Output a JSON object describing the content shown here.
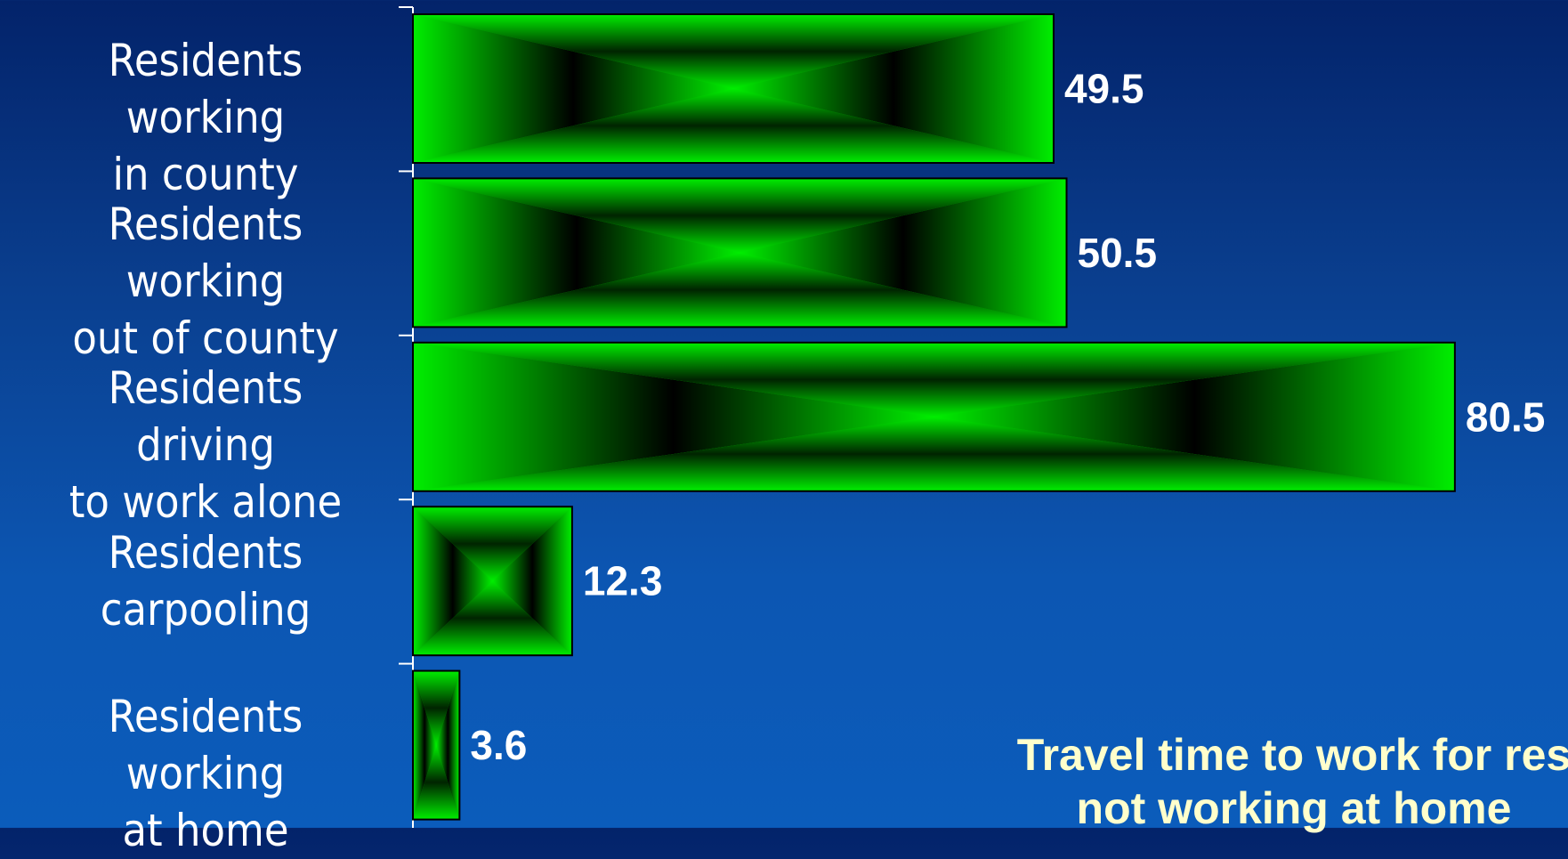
{
  "chart_data": {
    "type": "bar",
    "orientation": "horizontal",
    "categories": [
      "Residents working\nin county",
      "Residents working\nout of county",
      "Residents driving\nto work alone",
      "Residents\ncarpooling",
      "Residents working\nat home"
    ],
    "values": [
      49.5,
      50.5,
      80.5,
      12.3,
      3.6
    ],
    "value_labels": [
      "49.5",
      "50.5",
      "80.5",
      "12.3",
      "3.6"
    ],
    "annotation": "Travel time to work for res\nnot working at home",
    "title": "",
    "xlabel": "",
    "ylabel": "",
    "grid": false,
    "legend": "none",
    "colors": {
      "bar": "#00ee00",
      "bar_center": "#000000",
      "value_text": "#ffffff",
      "annotation_text": "#ffffcc"
    }
  }
}
